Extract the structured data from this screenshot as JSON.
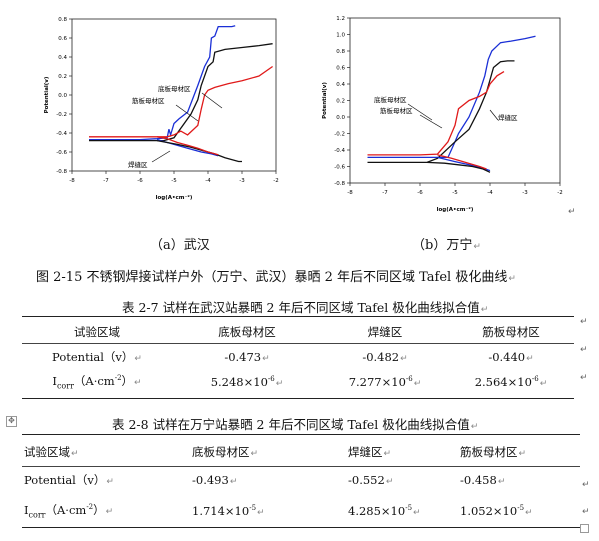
{
  "charts": [
    {
      "xlabel": "log(A•cm⁻²)",
      "ylabel": "Potential(v)",
      "xticks": [
        "-8",
        "-7",
        "-6",
        "-5",
        "-4",
        "-3",
        "-2"
      ],
      "yticks": [
        "0.8",
        "0.6",
        "0.4",
        "0.2",
        "0.0",
        "-0.2",
        "-0.4",
        "-0.6",
        "-0.8"
      ],
      "annotations": [
        "底板母材区",
        "筋板母材区",
        "焊缝区"
      ]
    },
    {
      "xlabel": "log(A•cm⁻²)",
      "ylabel": "Potential(v)",
      "xticks": [
        "-8",
        "-7",
        "-6",
        "-5",
        "-4",
        "-3",
        "-2"
      ],
      "yticks": [
        "1.2",
        "1.0",
        "0.8",
        "0.6",
        "0.4",
        "0.2",
        "0.0",
        "-0.2",
        "-0.4",
        "-0.6",
        "-0.8"
      ],
      "annotations": [
        "底板母材区",
        "筋板母材区",
        "焊缝区"
      ]
    }
  ],
  "chart_data": [
    {
      "type": "line",
      "xlim": [
        -8,
        -2
      ],
      "ylim": [
        -0.8,
        0.8
      ],
      "series": [
        {
          "color": "#1a2fd6",
          "x": [
            -7.5,
            -6.5,
            -6.0,
            -5.5,
            -5.2,
            -5.15,
            -5.1,
            -5.0,
            -4.85,
            -4.6,
            -4.3,
            -4.1,
            -3.95,
            -3.9,
            -3.8,
            -3.7,
            -3.5,
            -3.3,
            -3.2
          ],
          "y": [
            -0.47,
            -0.47,
            -0.47,
            -0.46,
            -0.45,
            -0.36,
            -0.42,
            -0.3,
            -0.25,
            -0.18,
            0.1,
            0.3,
            0.4,
            0.6,
            0.62,
            0.72,
            0.72,
            0.72,
            0.73
          ]
        },
        {
          "color": "#111111",
          "x": [
            -7.5,
            -6.5,
            -6.0,
            -5.5,
            -5.3,
            -5.0,
            -4.8,
            -4.5,
            -4.3,
            -4.2,
            -4.0,
            -3.85,
            -3.8,
            -3.5,
            -3.0,
            -2.5,
            -2.1
          ],
          "y": [
            -0.48,
            -0.48,
            -0.48,
            -0.48,
            -0.48,
            -0.45,
            -0.35,
            -0.2,
            -0.05,
            0.1,
            0.3,
            0.35,
            0.45,
            0.48,
            0.5,
            0.52,
            0.54
          ]
        },
        {
          "color": "#e01a1a",
          "x": [
            -7.5,
            -6.5,
            -6.0,
            -5.5,
            -5.2,
            -5.0,
            -4.8,
            -4.6,
            -4.3,
            -4.2,
            -4.1,
            -4.0,
            -3.8,
            -3.4,
            -3.0,
            -2.5,
            -2.1
          ],
          "y": [
            -0.44,
            -0.44,
            -0.44,
            -0.44,
            -0.44,
            -0.42,
            -0.38,
            -0.42,
            -0.32,
            -0.15,
            0.0,
            0.05,
            0.08,
            0.12,
            0.15,
            0.2,
            0.3
          ]
        },
        {
          "color": "#1a2fd6",
          "x": [
            -5.5,
            -5.2,
            -5.0,
            -4.6,
            -4.2,
            -3.9,
            -3.7
          ],
          "y": [
            -0.47,
            -0.5,
            -0.52,
            -0.56,
            -0.6,
            -0.62,
            -0.64
          ]
        },
        {
          "color": "#111111",
          "x": [
            -5.5,
            -5.2,
            -4.9,
            -4.5,
            -4.2,
            -3.8,
            -3.5,
            -3.1,
            -3.0
          ],
          "y": [
            -0.48,
            -0.5,
            -0.52,
            -0.55,
            -0.58,
            -0.62,
            -0.66,
            -0.7,
            -0.7
          ]
        },
        {
          "color": "#e01a1a",
          "x": [
            -5.5,
            -5.2,
            -4.9,
            -4.6,
            -4.3,
            -4.0,
            -3.7
          ],
          "y": [
            -0.44,
            -0.46,
            -0.5,
            -0.53,
            -0.56,
            -0.6,
            -0.63
          ]
        }
      ]
    },
    {
      "type": "line",
      "xlim": [
        -8,
        -2
      ],
      "ylim": [
        -0.8,
        1.2
      ],
      "series": [
        {
          "color": "#1a2fd6",
          "x": [
            -7.5,
            -6.5,
            -6.0,
            -5.5,
            -5.2,
            -5.0,
            -4.9,
            -4.6,
            -4.3,
            -4.15,
            -4.05,
            -3.95,
            -3.7,
            -3.4,
            -3.0,
            -2.7
          ],
          "y": [
            -0.49,
            -0.49,
            -0.49,
            -0.49,
            -0.49,
            -0.3,
            -0.2,
            0.0,
            0.3,
            0.5,
            0.7,
            0.8,
            0.9,
            0.92,
            0.95,
            0.98
          ]
        },
        {
          "color": "#111111",
          "x": [
            -7.5,
            -6.5,
            -6.0,
            -5.8,
            -5.5,
            -5.0,
            -4.6,
            -4.3,
            -4.1,
            -4.0,
            -3.9,
            -3.7,
            -3.5,
            -3.3
          ],
          "y": [
            -0.55,
            -0.55,
            -0.55,
            -0.55,
            -0.5,
            -0.3,
            -0.15,
            0.1,
            0.3,
            0.45,
            0.6,
            0.67,
            0.68,
            0.68
          ]
        },
        {
          "color": "#e01a1a",
          "x": [
            -7.5,
            -6.5,
            -6.0,
            -5.5,
            -5.2,
            -5.0,
            -4.9,
            -4.6,
            -4.3,
            -4.1,
            -4.0,
            -3.8,
            -3.6
          ],
          "y": [
            -0.46,
            -0.46,
            -0.46,
            -0.45,
            -0.3,
            -0.1,
            0.1,
            0.2,
            0.25,
            0.3,
            0.4,
            0.5,
            0.55
          ]
        },
        {
          "color": "#1a2fd6",
          "x": [
            -5.5,
            -5.0,
            -4.6,
            -4.2,
            -4.0
          ],
          "y": [
            -0.49,
            -0.54,
            -0.58,
            -0.62,
            -0.65
          ]
        },
        {
          "color": "#111111",
          "x": [
            -5.8,
            -5.3,
            -4.9,
            -4.5,
            -4.2,
            -4.0
          ],
          "y": [
            -0.55,
            -0.56,
            -0.58,
            -0.6,
            -0.63,
            -0.67
          ]
        },
        {
          "color": "#e01a1a",
          "x": [
            -5.5,
            -5.1,
            -4.7,
            -4.3,
            -4.1
          ],
          "y": [
            -0.46,
            -0.5,
            -0.55,
            -0.6,
            -0.63
          ]
        }
      ]
    }
  ],
  "subcaptions": [
    "（a）武汉",
    "（b）万宁"
  ],
  "figure_caption": "图 2-15 不锈钢焊接试样户外（万宁、武汉）暴晒 2 年后不同区域 Tafel 极化曲线",
  "table1": {
    "title": "表 2-7 试样在武汉站暴晒 2 年后不同区域 Tafel 极化曲线拟合值",
    "headers": [
      "试验区域",
      "底板母材区",
      "焊缝区",
      "筋板母材区"
    ],
    "rows": [
      {
        "label": "Potential（v）",
        "values": [
          "-0.473",
          "-0.482",
          "-0.440"
        ]
      },
      {
        "label_main": "I",
        "label_sub": "corr",
        "label_rest": "（A·cm",
        "label_sup": "-2",
        "label_end": "）",
        "values": [
          "5.248×10",
          "7.277×10",
          "2.564×10"
        ],
        "exps": [
          "-6",
          "-6",
          "-6"
        ]
      }
    ]
  },
  "table2": {
    "title": "表 2-8 试样在万宁站暴晒 2 年后不同区域 Tafel 极化曲线拟合值",
    "headers": [
      "试验区域",
      "底板母材区",
      "焊缝区",
      "筋板母材区"
    ],
    "rows": [
      {
        "label": "Potential（v）",
        "values": [
          "-0.493",
          "-0.552",
          "-0.458"
        ]
      },
      {
        "label_main": "I",
        "label_sub": "corr",
        "label_rest": "（A·cm",
        "label_sup": "-2",
        "label_end": "）",
        "values": [
          "1.714×10",
          "4.285×10",
          "1.052×10"
        ],
        "exps": [
          "-5",
          "-5",
          "-5"
        ]
      }
    ]
  }
}
